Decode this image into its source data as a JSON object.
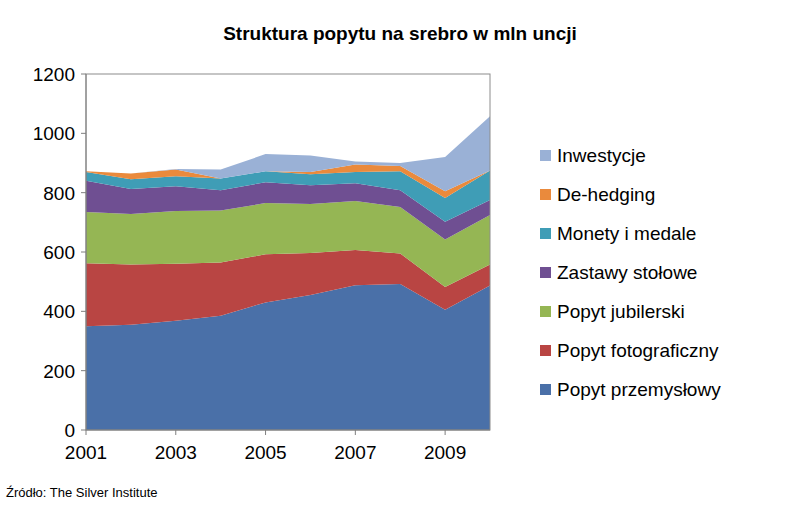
{
  "chart_data": {
    "type": "area",
    "stacked": true,
    "title": "Struktura popytu na srebro w mln uncji",
    "source": "Źródło: The Silver Institute",
    "x": [
      2001,
      2002,
      2003,
      2004,
      2005,
      2006,
      2007,
      2008,
      2009,
      2010
    ],
    "xlim": [
      2001,
      2010
    ],
    "xticks": [
      2001,
      2003,
      2005,
      2007,
      2009
    ],
    "ylim": [
      0,
      1200
    ],
    "yticks": [
      0,
      200,
      400,
      600,
      800,
      1000,
      1200
    ],
    "grid": false,
    "legend": "right",
    "series": [
      {
        "name": "Popyt przemysłowy",
        "color": "#4a70a8",
        "values": [
          350,
          355,
          368,
          385,
          430,
          455,
          488,
          492,
          405,
          487
        ]
      },
      {
        "name": "Popyt fotograficzny",
        "color": "#b94543",
        "values": [
          212,
          203,
          192,
          180,
          162,
          142,
          119,
          103,
          77,
          71
        ]
      },
      {
        "name": "Popyt jubilerski",
        "color": "#95b654",
        "values": [
          173,
          170,
          178,
          175,
          173,
          165,
          165,
          157,
          160,
          167
        ]
      },
      {
        "name": "Zastawy stołowe",
        "color": "#6f4f92",
        "values": [
          105,
          84,
          84,
          68,
          70,
          63,
          60,
          56,
          60,
          50
        ]
      },
      {
        "name": "Monety i medale",
        "color": "#3f9db6",
        "values": [
          30,
          33,
          33,
          40,
          37,
          37,
          38,
          64,
          80,
          100
        ]
      },
      {
        "name": "De-hedging",
        "color": "#ea8a3c",
        "values": [
          2,
          20,
          23,
          0,
          0,
          8,
          25,
          18,
          23,
          0
        ]
      },
      {
        "name": "Inwestycje",
        "color": "#9ab1d6",
        "values": [
          0,
          0,
          2,
          30,
          58,
          55,
          10,
          10,
          115,
          183
        ]
      }
    ]
  }
}
